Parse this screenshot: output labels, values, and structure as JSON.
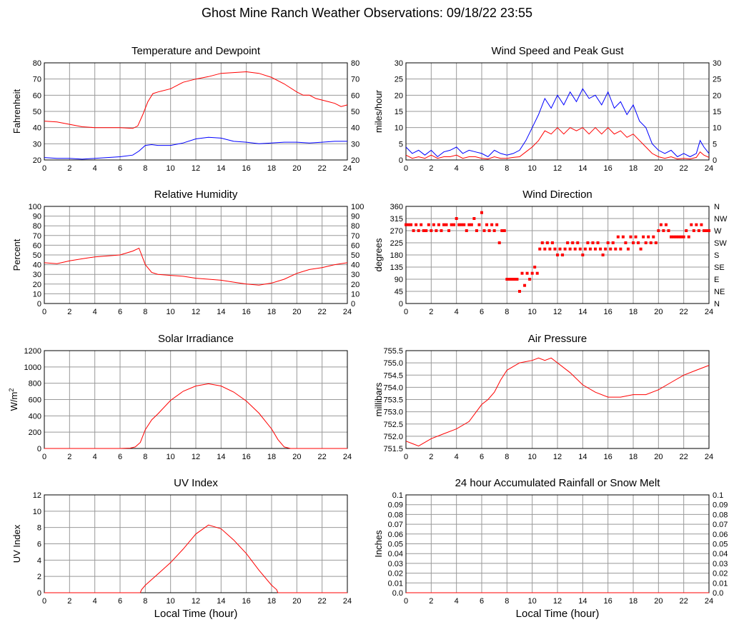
{
  "page": {
    "title": "Ghost Mine Ranch Weather Observations: 09/18/22 23:55"
  },
  "colors": {
    "primary": "#ff0000",
    "secondary": "#0000ff",
    "grid": "#999999",
    "axis": "#000000"
  },
  "chart_data": [
    {
      "id": "temp",
      "type": "line",
      "title": "Temperature and Dewpoint",
      "xlabel": "",
      "ylabel": "Fahrenheit",
      "xlim": [
        0,
        24
      ],
      "ylim": [
        20,
        80
      ],
      "right_axis": true,
      "x_ticks": [
        "0",
        "2",
        "4",
        "6",
        "8",
        "10",
        "12",
        "14",
        "16",
        "18",
        "20",
        "22",
        "24"
      ],
      "y_ticks": [
        "20",
        "30",
        "40",
        "50",
        "60",
        "70",
        "80"
      ],
      "series": [
        {
          "color": "#ff0000",
          "x": [
            0,
            1,
            2,
            3,
            4,
            5,
            6,
            7,
            7.4,
            7.8,
            8.2,
            8.6,
            9,
            10,
            11,
            12,
            13,
            14,
            15,
            16,
            17,
            18,
            19,
            20,
            20.5,
            21,
            21.5,
            22,
            22.5,
            23,
            23.5,
            24
          ],
          "y": [
            44,
            43.5,
            42,
            40.5,
            40,
            40,
            40,
            39.5,
            41,
            48,
            56,
            61,
            62,
            64,
            68,
            70,
            71.5,
            73.5,
            74,
            74.5,
            73.5,
            71,
            67,
            62,
            60,
            60,
            58,
            57,
            56,
            55,
            53,
            54
          ]
        },
        {
          "color": "#0000ff",
          "x": [
            0,
            1,
            2,
            3,
            4,
            5,
            6,
            7,
            7.5,
            8,
            8.5,
            9,
            10,
            11,
            12,
            13,
            14,
            15,
            16,
            17,
            18,
            19,
            20,
            21,
            22,
            23,
            24
          ],
          "y": [
            21.5,
            21,
            21,
            20.5,
            21,
            21.5,
            22,
            23,
            25.5,
            29,
            29.5,
            29,
            29,
            30.5,
            33,
            34,
            33.5,
            31.5,
            31,
            30,
            30.5,
            31,
            31,
            30.5,
            31,
            31.5,
            31.5
          ]
        }
      ]
    },
    {
      "id": "wind",
      "type": "line",
      "title": "Wind Speed and Peak Gust",
      "xlabel": "",
      "ylabel": "miles/hour",
      "xlim": [
        0,
        24
      ],
      "ylim": [
        0,
        30
      ],
      "right_axis": true,
      "x_ticks": [
        "0",
        "2",
        "4",
        "6",
        "8",
        "10",
        "12",
        "14",
        "16",
        "18",
        "20",
        "22",
        "24"
      ],
      "y_ticks": [
        "0",
        "5",
        "10",
        "15",
        "20",
        "25",
        "30"
      ],
      "series": [
        {
          "color": "#0000ff",
          "x": [
            0,
            0.5,
            1,
            1.5,
            2,
            2.5,
            3,
            3.5,
            4,
            4.5,
            5,
            5.5,
            6,
            6.5,
            7,
            7.5,
            8,
            8.5,
            9,
            9.5,
            10,
            10.5,
            11,
            11.5,
            12,
            12.5,
            13,
            13.5,
            14,
            14.5,
            15,
            15.5,
            16,
            16.5,
            17,
            17.5,
            18,
            18.5,
            19,
            19.5,
            20,
            20.5,
            21,
            21.5,
            22,
            22.5,
            23,
            23.3,
            23.6,
            24
          ],
          "y": [
            4,
            2,
            3,
            1.5,
            3,
            1,
            2.5,
            3,
            4,
            2,
            3,
            2.5,
            2,
            1,
            3,
            2,
            1.5,
            2,
            3,
            6,
            10,
            14,
            19,
            16,
            20,
            17,
            21,
            18,
            22,
            19,
            20,
            17,
            21,
            16,
            18,
            14,
            17,
            12,
            10,
            5,
            3,
            2,
            3,
            1,
            2,
            1,
            2,
            6,
            4,
            2
          ]
        },
        {
          "color": "#ff0000",
          "x": [
            0,
            0.5,
            1,
            1.5,
            2,
            2.5,
            3,
            3.5,
            4,
            4.5,
            5,
            5.5,
            6,
            6.5,
            7,
            7.5,
            8,
            8.5,
            9,
            9.5,
            10,
            10.5,
            11,
            11.5,
            12,
            12.5,
            13,
            13.5,
            14,
            14.5,
            15,
            15.5,
            16,
            16.5,
            17,
            17.5,
            18,
            18.5,
            19,
            19.5,
            20,
            20.5,
            21,
            21.5,
            22,
            22.5,
            23,
            23.3,
            23.6,
            24
          ],
          "y": [
            1.5,
            0.5,
            1,
            0.5,
            1.5,
            0.5,
            1,
            1,
            1.5,
            0.5,
            1,
            1,
            0.5,
            0.3,
            1,
            0.5,
            0.5,
            0.8,
            1,
            2.5,
            4,
            6,
            9,
            8,
            10,
            8,
            10,
            9,
            10,
            8,
            10,
            8,
            10,
            8,
            9,
            7,
            8,
            6,
            4,
            2,
            1,
            0.5,
            1,
            0.3,
            0.5,
            0.3,
            0.8,
            2.5,
            1.5,
            0.8
          ]
        }
      ]
    },
    {
      "id": "rh",
      "type": "line",
      "title": "Relative Humidity",
      "xlabel": "",
      "ylabel": "Percent",
      "xlim": [
        0,
        24
      ],
      "ylim": [
        0,
        100
      ],
      "right_axis": true,
      "x_ticks": [
        "0",
        "2",
        "4",
        "6",
        "8",
        "10",
        "12",
        "14",
        "16",
        "18",
        "20",
        "22",
        "24"
      ],
      "y_ticks": [
        "0",
        "10",
        "20",
        "30",
        "40",
        "50",
        "60",
        "70",
        "80",
        "90",
        "100"
      ],
      "series": [
        {
          "color": "#ff0000",
          "x": [
            0,
            1,
            2,
            3,
            4,
            5,
            6,
            7,
            7.5,
            8,
            8.5,
            9,
            10,
            11,
            12,
            13,
            14,
            15,
            16,
            17,
            18,
            19,
            20,
            21,
            22,
            23,
            24
          ],
          "y": [
            42,
            41,
            44,
            46,
            48,
            49,
            50,
            54,
            57,
            40,
            32,
            30,
            29,
            28,
            26,
            25,
            24,
            22,
            20,
            19,
            21,
            25,
            31,
            35,
            37,
            40,
            42
          ]
        }
      ]
    },
    {
      "id": "wdir",
      "type": "scatter",
      "title": "Wind Direction",
      "xlabel": "",
      "ylabel": "degrees",
      "xlim": [
        0,
        24
      ],
      "ylim": [
        0,
        360
      ],
      "right_axis": false,
      "x_ticks": [
        "0",
        "2",
        "4",
        "6",
        "8",
        "10",
        "12",
        "14",
        "16",
        "18",
        "20",
        "22",
        "24"
      ],
      "y_ticks": [
        "0",
        "45",
        "90",
        "135",
        "180",
        "225",
        "270",
        "315",
        "360"
      ],
      "right_ticks": [
        "N",
        "NE",
        "E",
        "SE",
        "S",
        "SW",
        "W",
        "NW",
        "N"
      ],
      "series": [
        {
          "color": "#ff0000",
          "x": [
            0,
            0.2,
            0.4,
            0.6,
            0.8,
            1,
            1.2,
            1.4,
            1.6,
            1.8,
            2,
            2.2,
            2.4,
            2.6,
            2.8,
            3,
            3.2,
            3.4,
            3.6,
            3.8,
            4,
            4.2,
            4.4,
            4.6,
            4.8,
            5,
            5.2,
            5.4,
            5.6,
            5.8,
            6,
            6.2,
            6.4,
            6.6,
            6.8,
            7,
            7.2,
            7.4,
            7.6,
            7.8,
            8,
            8.2,
            8.4,
            8.6,
            8.8,
            9,
            9.2,
            9.4,
            9.6,
            9.8,
            10,
            10.2,
            10.4,
            10.6,
            10.8,
            11,
            11.2,
            11.4,
            11.6,
            11.8,
            12,
            12.2,
            12.4,
            12.6,
            12.8,
            13,
            13.2,
            13.4,
            13.6,
            13.8,
            14,
            14.2,
            14.4,
            14.6,
            14.8,
            15,
            15.2,
            15.4,
            15.6,
            15.8,
            16,
            16.2,
            16.4,
            16.6,
            16.8,
            17,
            17.2,
            17.4,
            17.6,
            17.8,
            18,
            18.2,
            18.4,
            18.6,
            18.8,
            19,
            19.2,
            19.4,
            19.6,
            19.8,
            20,
            20.2,
            20.4,
            20.6,
            20.8,
            21,
            21.2,
            21.4,
            21.6,
            21.8,
            22,
            22.2,
            22.4,
            22.6,
            22.8,
            23,
            23.2,
            23.4,
            23.6,
            23.8,
            24
          ],
          "y": [
            292,
            292,
            292,
            270,
            292,
            270,
            292,
            270,
            270,
            292,
            270,
            292,
            270,
            292,
            270,
            292,
            292,
            270,
            292,
            292,
            315,
            292,
            292,
            292,
            270,
            292,
            292,
            315,
            270,
            292,
            337,
            270,
            292,
            270,
            292,
            270,
            292,
            225,
            270,
            270,
            90,
            90,
            90,
            90,
            90,
            45,
            112,
            67,
            112,
            90,
            112,
            135,
            112,
            202,
            225,
            202,
            225,
            202,
            225,
            202,
            180,
            202,
            180,
            202,
            225,
            202,
            225,
            202,
            225,
            202,
            180,
            202,
            225,
            202,
            225,
            202,
            225,
            202,
            180,
            202,
            225,
            202,
            225,
            202,
            247,
            202,
            247,
            225,
            202,
            247,
            225,
            247,
            225,
            202,
            247,
            225,
            247,
            225,
            247,
            225,
            270,
            292,
            270,
            292,
            270,
            247,
            247,
            247,
            247,
            247,
            247,
            270,
            247,
            292,
            270,
            292,
            270,
            292,
            270,
            270,
            270
          ]
        }
      ]
    },
    {
      "id": "solar",
      "type": "line",
      "title": "Solar Irradiance",
      "xlabel": "",
      "ylabel": "W/m2",
      "xlim": [
        0,
        24
      ],
      "ylim": [
        0,
        1300
      ],
      "right_axis": false,
      "x_ticks": [
        "0",
        "2",
        "4",
        "6",
        "8",
        "10",
        "12",
        "14",
        "16",
        "18",
        "20",
        "22",
        "24"
      ],
      "y_ticks": [
        "0",
        "200",
        "400",
        "600",
        "800",
        "1000",
        "1200"
      ],
      "series": [
        {
          "color": "#ff0000",
          "x": [
            0,
            6,
            6.8,
            7.2,
            7.6,
            8,
            8.5,
            9,
            10,
            11,
            12,
            13,
            14,
            15,
            16,
            17,
            18,
            18.5,
            19,
            19.5,
            24
          ],
          "y": [
            0,
            0,
            5,
            20,
            80,
            250,
            380,
            460,
            640,
            760,
            830,
            860,
            830,
            750,
            630,
            470,
            260,
            120,
            20,
            0,
            0
          ]
        }
      ]
    },
    {
      "id": "pressure",
      "type": "line",
      "title": "Air Pressure",
      "xlabel": "",
      "ylabel": "millibars",
      "xlim": [
        0,
        24
      ],
      "ylim": [
        751.5,
        755.5
      ],
      "right_axis": false,
      "x_ticks": [
        "0",
        "2",
        "4",
        "6",
        "8",
        "10",
        "12",
        "14",
        "16",
        "18",
        "20",
        "22",
        "24"
      ],
      "y_ticks": [
        "751.5",
        "752.0",
        "752.5",
        "753.0",
        "753.5",
        "754.0",
        "754.5",
        "755.0",
        "755.5"
      ],
      "series": [
        {
          "color": "#ff0000",
          "x": [
            0,
            0.5,
            1,
            2,
            3,
            4,
            5,
            6,
            6.5,
            7,
            7.5,
            8,
            9,
            10,
            10.5,
            11,
            11.5,
            12,
            13,
            14,
            15,
            16,
            17,
            18,
            19,
            20,
            21,
            22,
            23,
            24
          ],
          "y": [
            751.8,
            751.7,
            751.6,
            751.9,
            752.1,
            752.3,
            752.6,
            753.3,
            753.5,
            753.8,
            754.3,
            754.7,
            755.0,
            755.1,
            755.2,
            755.1,
            755.2,
            755.0,
            754.6,
            754.1,
            753.8,
            753.6,
            753.6,
            753.7,
            753.7,
            753.9,
            754.2,
            754.5,
            754.7,
            754.9
          ]
        }
      ]
    },
    {
      "id": "uv",
      "type": "line",
      "title": "UV Index",
      "xlabel": "Local Time (hour)",
      "ylabel": "UV Index",
      "xlim": [
        0,
        24
      ],
      "ylim": [
        0,
        13
      ],
      "right_axis": false,
      "x_ticks": [
        "0",
        "2",
        "4",
        "6",
        "8",
        "10",
        "12",
        "14",
        "16",
        "18",
        "20",
        "22",
        "24"
      ],
      "y_ticks": [
        "0",
        "2",
        "4",
        "6",
        "8",
        "10",
        "12"
      ],
      "series": [
        {
          "color": "#ff0000",
          "x": [
            0,
            7.6,
            7.7,
            8,
            9,
            10,
            11,
            12,
            13,
            14,
            15,
            16,
            17,
            18,
            18.4,
            18.5,
            24
          ],
          "y": [
            0,
            0,
            0.4,
            1,
            2.5,
            4,
            5.8,
            7.8,
            9,
            8.5,
            7,
            5.2,
            3,
            1,
            0.4,
            0,
            0
          ]
        }
      ]
    },
    {
      "id": "rain",
      "type": "line",
      "title": "24 hour Accumulated Rainfall or Snow Melt",
      "xlabel": "Local Time (hour)",
      "ylabel": "Inches",
      "xlim": [
        0,
        24
      ],
      "ylim": [
        0,
        0.1
      ],
      "right_axis": true,
      "x_ticks": [
        "0",
        "2",
        "4",
        "6",
        "8",
        "10",
        "12",
        "14",
        "16",
        "18",
        "20",
        "22",
        "24"
      ],
      "y_ticks": [
        "0.0",
        "0.01",
        "0.02",
        "0.03",
        "0.04",
        "0.05",
        "0.06",
        "0.07",
        "0.08",
        "0.09",
        "0.1"
      ],
      "series": [
        {
          "color": "#ff0000",
          "x": [
            0,
            24
          ],
          "y": [
            0,
            0
          ]
        }
      ]
    }
  ]
}
